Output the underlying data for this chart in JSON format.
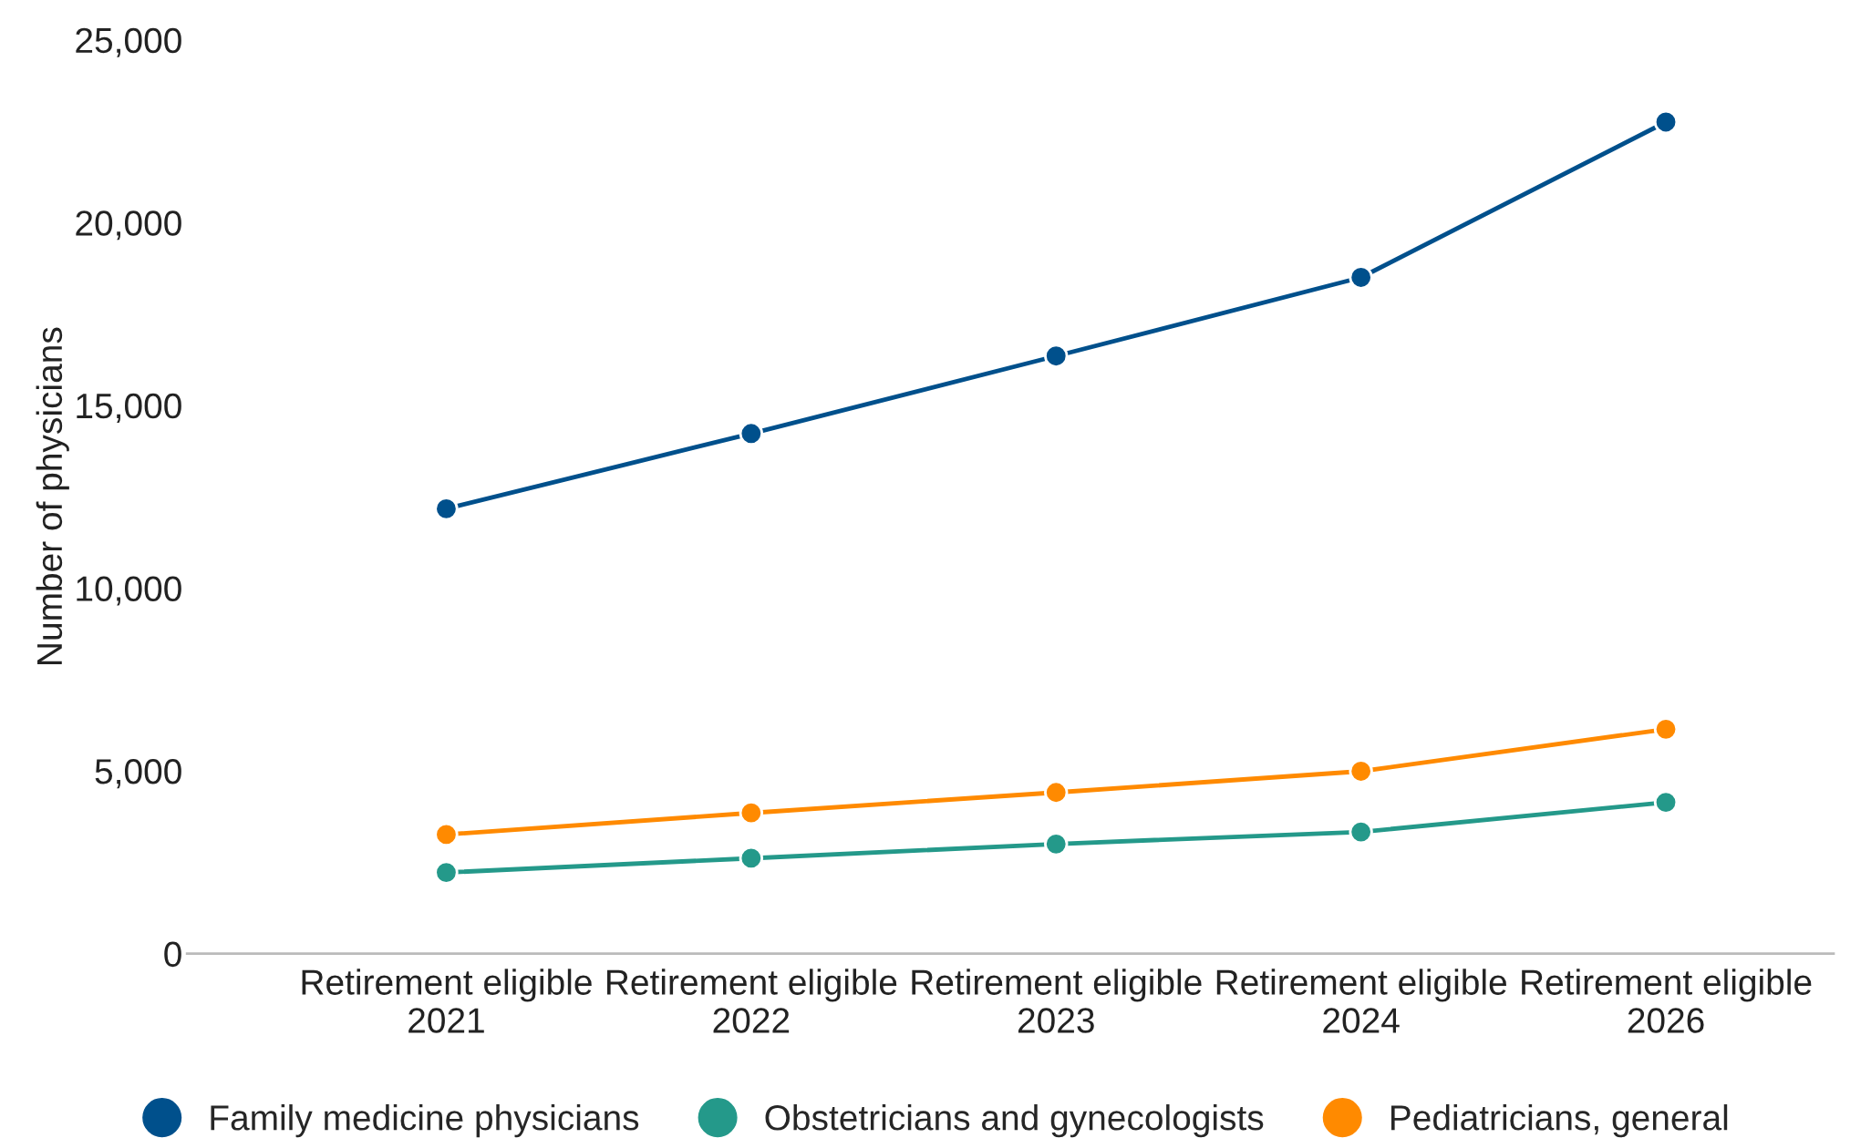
{
  "chart_data": {
    "type": "line",
    "ylabel": "Number of physicians",
    "categories": [
      "Retirement eligible\n2021",
      "Retirement eligible\n2022",
      "Retirement eligible\n2023",
      "Retirement eligible\n2024",
      "Retirement eligible\n2026"
    ],
    "series": [
      {
        "name": "Family medicine physicians",
        "color": "#00508c",
        "values": [
          12170,
          14230,
          16350,
          18500,
          22750
        ]
      },
      {
        "name": "Obstetricians and gynecologists",
        "color": "#24998a",
        "values": [
          2220,
          2610,
          3000,
          3330,
          4140
        ]
      },
      {
        "name": "Pediatricians, general",
        "color": "#ff8a00",
        "values": [
          3260,
          3850,
          4410,
          4990,
          6140
        ]
      }
    ],
    "ylim": [
      0,
      25000
    ],
    "yticks": [
      0,
      {
        "value": 5000,
        "label": "5,000"
      },
      {
        "value": 10000,
        "label": "10,000"
      },
      {
        "value": 15000,
        "label": "15,000"
      },
      {
        "value": 20000,
        "label": "20,000"
      },
      {
        "value": 25000,
        "label": "25,000"
      }
    ],
    "grid": false,
    "legend": "bottom",
    "marker": "circle",
    "line_style": "solid"
  }
}
